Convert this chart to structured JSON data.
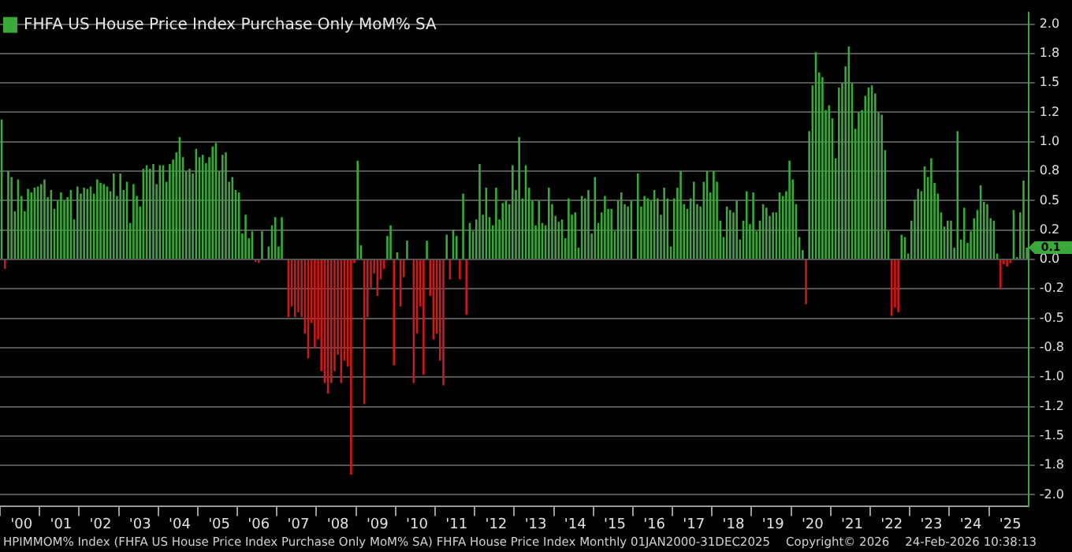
{
  "chart_data": {
    "type": "bar",
    "categories": [
      null,
      null,
      null,
      null,
      null,
      null,
      "'00",
      null,
      null,
      null,
      null,
      null,
      null,
      null,
      null,
      null,
      null,
      null,
      "'01",
      null,
      null,
      null,
      null,
      null,
      null,
      null,
      null,
      null,
      null,
      null,
      "'02",
      null,
      null,
      null,
      null,
      null,
      null,
      null,
      null,
      null,
      null,
      null,
      "'03",
      null,
      null,
      null,
      null,
      null,
      null,
      null,
      null,
      null,
      null,
      null,
      "'04",
      null,
      null,
      null,
      null,
      null,
      null,
      null,
      null,
      null,
      null,
      null,
      "'05",
      null,
      null,
      null,
      null,
      null,
      null,
      null,
      null,
      null,
      null,
      null,
      "'06",
      null,
      null,
      null,
      null,
      null,
      null,
      null,
      null,
      null,
      null,
      null,
      "'07",
      null,
      null,
      null,
      null,
      null,
      null,
      null,
      null,
      null,
      null,
      null,
      "'08",
      null,
      null,
      null,
      null,
      null,
      null,
      null,
      null,
      null,
      null,
      null,
      "'09",
      null,
      null,
      null,
      null,
      null,
      null,
      null,
      null,
      null,
      null,
      null,
      "'10",
      null,
      null,
      null,
      null,
      null,
      null,
      null,
      null,
      null,
      null,
      null,
      "'11",
      null,
      null,
      null,
      null,
      null,
      null,
      null,
      null,
      null,
      null,
      null,
      "'12",
      null,
      null,
      null,
      null,
      null,
      null,
      null,
      null,
      null,
      null,
      null,
      "'13",
      null,
      null,
      null,
      null,
      null,
      null,
      null,
      null,
      null,
      null,
      null,
      "'14",
      null,
      null,
      null,
      null,
      null,
      null,
      null,
      null,
      null,
      null,
      null,
      "'15",
      null,
      null,
      null,
      null,
      null,
      null,
      null,
      null,
      null,
      null,
      null,
      "'16",
      null,
      null,
      null,
      null,
      null,
      null,
      null,
      null,
      null,
      null,
      null,
      "'17",
      null,
      null,
      null,
      null,
      null,
      null,
      null,
      null,
      null,
      null,
      null,
      "'18",
      null,
      null,
      null,
      null,
      null,
      null,
      null,
      null,
      null,
      null,
      null,
      "'19",
      null,
      null,
      null,
      null,
      null,
      null,
      null,
      null,
      null,
      null,
      null,
      "'20",
      null,
      null,
      null,
      null,
      null,
      null,
      null,
      null,
      null,
      null,
      null,
      "'21",
      null,
      null,
      null,
      null,
      null,
      null,
      null,
      null,
      null,
      null,
      null,
      "'22",
      null,
      null,
      null,
      null,
      null,
      null,
      null,
      null,
      null,
      null,
      null,
      "'23",
      null,
      null,
      null,
      null,
      null,
      null,
      null,
      null,
      null,
      null,
      null,
      "'24",
      null,
      null,
      null,
      null,
      null,
      null,
      null,
      null,
      null,
      null,
      null,
      "'25",
      null,
      null,
      null,
      null,
      null
    ],
    "series": [
      {
        "name": "FHFA US House Price Index Purchase Only MoM% SA",
        "color": "#3aa83a",
        "values": [
          1.19,
          -0.08,
          0.75,
          0.7,
          0.41,
          0.68,
          0.54,
          0.41,
          0.6,
          0.57,
          0.61,
          0.62,
          0.64,
          0.68,
          0.53,
          0.59,
          0.43,
          0.5,
          0.57,
          0.5,
          0.53,
          0.59,
          0.34,
          0.62,
          0.56,
          0.61,
          0.6,
          0.62,
          0.56,
          0.68,
          0.65,
          0.64,
          0.62,
          0.58,
          0.73,
          0.54,
          0.73,
          0.59,
          0.66,
          0.31,
          0.64,
          0.54,
          0.45,
          0.77,
          0.8,
          0.77,
          0.81,
          0.64,
          0.8,
          0.8,
          0.66,
          0.81,
          0.85,
          0.91,
          1.04,
          0.87,
          0.75,
          0.77,
          0.73,
          0.94,
          0.87,
          0.89,
          0.82,
          0.87,
          0.96,
          0.99,
          0.75,
          0.89,
          0.91,
          0.66,
          0.7,
          0.59,
          0.57,
          0.22,
          0.38,
          0.18,
          0.24,
          -0.02,
          -0.03,
          0.24,
          null,
          0.11,
          0.29,
          0.36,
          0.11,
          0.36,
          null,
          -0.49,
          -0.4,
          -0.49,
          -0.45,
          -0.49,
          -0.63,
          -0.84,
          -0.54,
          -0.75,
          -0.68,
          -0.95,
          -1.05,
          -1.14,
          -1.05,
          -0.95,
          -0.81,
          -1.05,
          -0.86,
          -0.91,
          -1.83,
          -0.03,
          0.84,
          0.12,
          -1.23,
          -0.49,
          -0.24,
          -0.12,
          -0.31,
          -0.17,
          -0.08,
          0.2,
          0.29,
          -0.9,
          0.06,
          -0.4,
          -0.15,
          0.16,
          null,
          -1.05,
          -0.63,
          -0.4,
          -0.98,
          0.16,
          -0.31,
          -0.68,
          -0.63,
          -0.86,
          -1.07,
          0.21,
          -0.17,
          0.25,
          0.2,
          -0.17,
          0.56,
          -0.47,
          0.31,
          0.24,
          0.34,
          0.81,
          0.38,
          0.61,
          0.36,
          0.29,
          0.61,
          0.34,
          0.48,
          0.5,
          0.47,
          0.8,
          0.59,
          1.04,
          0.52,
          0.8,
          0.61,
          0.5,
          0.29,
          0.5,
          0.31,
          0.29,
          0.61,
          0.47,
          0.37,
          0.32,
          0.34,
          0.18,
          0.52,
          0.38,
          0.4,
          0.1,
          0.54,
          0.52,
          0.59,
          0.22,
          0.7,
          0.31,
          0.4,
          0.54,
          0.43,
          0.43,
          0.24,
          0.5,
          0.57,
          0.47,
          0.45,
          0.5,
          null,
          0.73,
          0.45,
          0.54,
          0.52,
          0.5,
          0.59,
          0.52,
          0.38,
          0.61,
          0.52,
          0.11,
          0.52,
          0.61,
          0.75,
          0.47,
          0.43,
          0.52,
          0.66,
          0.47,
          0.45,
          0.66,
          0.75,
          0.57,
          0.75,
          0.66,
          0.33,
          0.19,
          0.45,
          0.42,
          0.4,
          0.5,
          0.17,
          0.33,
          0.58,
          0.3,
          0.57,
          0.24,
          0.33,
          0.47,
          0.44,
          0.37,
          0.4,
          0.4,
          0.57,
          0.54,
          0.58,
          0.84,
          0.68,
          0.47,
          0.19,
          0.08,
          -0.38,
          1.09,
          1.48,
          1.76,
          1.59,
          1.55,
          1.27,
          1.31,
          1.2,
          0.86,
          1.46,
          1.5,
          1.64,
          1.81,
          1.5,
          1.11,
          1.25,
          1.27,
          1.39,
          1.46,
          1.48,
          1.41,
          1.25,
          1.23,
          0.93,
          0.24,
          -0.48,
          -0.41,
          -0.45,
          0.21,
          0.19,
          0.05,
          0.33,
          0.51,
          0.6,
          0.58,
          0.79,
          0.7,
          0.86,
          0.65,
          0.56,
          0.4,
          0.28,
          0.33,
          0.33,
          0.1,
          1.09,
          0.17,
          0.44,
          0.14,
          0.24,
          0.35,
          0.42,
          0.63,
          0.49,
          0.47,
          0.35,
          0.33,
          0.05,
          -0.25,
          -0.04,
          -0.06,
          -0.03,
          0.42,
          0.02,
          0.4,
          0.67,
          0.1
        ],
        "colors": [
          "#3aa83a",
          "#d01818",
          "#3aa83a",
          "#3aa83a",
          "#3aa83a",
          "#3aa83a",
          "#3aa83a",
          "#3aa83a",
          "#3aa83a",
          "#3aa83a",
          "#3aa83a",
          "#3aa83a",
          "#3aa83a",
          "#3aa83a",
          "#3aa83a",
          "#3aa83a",
          "#3aa83a",
          "#3aa83a",
          "#3aa83a",
          "#3aa83a",
          "#3aa83a",
          "#3aa83a",
          "#3aa83a",
          "#3aa83a",
          "#3aa83a",
          "#3aa83a",
          "#3aa83a",
          "#3aa83a",
          "#3aa83a",
          "#3aa83a",
          "#3aa83a",
          "#3aa83a",
          "#3aa83a",
          "#3aa83a",
          "#3aa83a",
          "#3aa83a",
          "#3aa83a",
          "#3aa83a",
          "#3aa83a",
          "#3aa83a",
          "#3aa83a",
          "#3aa83a",
          "#3aa83a",
          "#3aa83a",
          "#3aa83a",
          "#3aa83a",
          "#3aa83a",
          "#3aa83a",
          "#3aa83a",
          "#3aa83a",
          "#3aa83a",
          "#3aa83a",
          "#3aa83a",
          "#3aa83a",
          "#3aa83a",
          "#3aa83a",
          "#3aa83a",
          "#3aa83a",
          "#3aa83a",
          "#3aa83a",
          "#3aa83a",
          "#3aa83a",
          "#3aa83a",
          "#3aa83a",
          "#3aa83a",
          "#3aa83a",
          "#3aa83a",
          "#3aa83a",
          "#3aa83a",
          "#3aa83a",
          "#3aa83a",
          "#3aa83a",
          "#3aa83a",
          "#3aa83a",
          "#3aa83a",
          "#3aa83a",
          "#3aa83a",
          "#d01818",
          "#d01818",
          "#3aa83a",
          "#3aa83a",
          "#3aa83a",
          "#3aa83a",
          "#3aa83a",
          "#3aa83a",
          "#3aa83a",
          "#3aa83a",
          "#d01818",
          "#d01818",
          "#d01818",
          "#d01818",
          "#d01818",
          "#d01818",
          "#d01818",
          "#d01818",
          "#d01818",
          "#d01818",
          "#d01818",
          "#d01818",
          "#d01818",
          "#d01818",
          "#d01818",
          "#d01818",
          "#d01818",
          "#d01818",
          "#d01818",
          "#d01818",
          "#d01818",
          "#3aa83a",
          "#3aa83a",
          "#d01818",
          "#d01818",
          "#d01818",
          "#d01818",
          "#d01818",
          "#d01818",
          "#d01818",
          "#3aa83a",
          "#3aa83a",
          "#d01818",
          "#3aa83a",
          "#d01818",
          "#d01818",
          "#3aa83a",
          "#3aa83a",
          "#d01818",
          "#d01818",
          "#d01818",
          "#d01818",
          "#3aa83a",
          "#d01818",
          "#d01818",
          "#d01818",
          "#d01818",
          "#d01818",
          "#3aa83a",
          "#d01818",
          "#3aa83a",
          "#3aa83a",
          "#d01818",
          "#3aa83a",
          "#d01818",
          "#3aa83a",
          "#3aa83a",
          "#3aa83a",
          "#3aa83a",
          "#3aa83a",
          "#3aa83a",
          "#3aa83a",
          "#3aa83a",
          "#3aa83a",
          "#3aa83a",
          "#3aa83a",
          "#3aa83a",
          "#3aa83a",
          "#3aa83a",
          "#3aa83a",
          "#3aa83a",
          "#3aa83a",
          "#3aa83a",
          "#3aa83a",
          "#3aa83a",
          "#3aa83a",
          "#3aa83a",
          "#3aa83a",
          "#3aa83a",
          "#3aa83a",
          "#3aa83a",
          "#3aa83a",
          "#3aa83a",
          "#3aa83a",
          "#3aa83a",
          "#3aa83a",
          "#3aa83a",
          "#3aa83a",
          "#3aa83a",
          "#3aa83a",
          "#3aa83a",
          "#3aa83a",
          "#3aa83a",
          "#3aa83a",
          "#3aa83a",
          "#3aa83a",
          "#3aa83a",
          "#3aa83a",
          "#3aa83a",
          "#3aa83a",
          "#3aa83a",
          "#3aa83a",
          "#3aa83a",
          "#3aa83a",
          "#3aa83a",
          "#3aa83a",
          "#3aa83a",
          "#3aa83a",
          "#3aa83a",
          "#3aa83a",
          "#3aa83a",
          "#3aa83a",
          "#3aa83a",
          "#3aa83a",
          "#3aa83a",
          "#3aa83a",
          "#3aa83a",
          "#3aa83a",
          "#3aa83a",
          "#3aa83a",
          "#3aa83a",
          "#3aa83a",
          "#3aa83a",
          "#3aa83a",
          "#3aa83a",
          "#3aa83a",
          "#3aa83a",
          "#3aa83a",
          "#3aa83a",
          "#3aa83a",
          "#3aa83a",
          "#3aa83a",
          "#3aa83a",
          "#3aa83a",
          "#3aa83a",
          "#3aa83a",
          "#3aa83a",
          "#3aa83a",
          "#3aa83a",
          "#3aa83a",
          "#3aa83a",
          "#3aa83a",
          "#3aa83a",
          "#3aa83a",
          "#3aa83a",
          "#3aa83a",
          "#3aa83a",
          "#3aa83a",
          "#3aa83a",
          "#3aa83a",
          "#3aa83a",
          "#3aa83a",
          "#3aa83a",
          "#3aa83a",
          "#3aa83a",
          "#3aa83a",
          "#3aa83a",
          "#d01818",
          "#3aa83a",
          "#3aa83a",
          "#3aa83a",
          "#3aa83a",
          "#3aa83a",
          "#3aa83a",
          "#3aa83a",
          "#3aa83a",
          "#3aa83a",
          "#3aa83a",
          "#3aa83a",
          "#3aa83a",
          "#3aa83a",
          "#3aa83a",
          "#3aa83a",
          "#3aa83a",
          "#3aa83a",
          "#3aa83a",
          "#3aa83a",
          "#3aa83a",
          "#3aa83a",
          "#3aa83a",
          "#3aa83a",
          "#3aa83a",
          "#3aa83a",
          "#d01818",
          "#d01818",
          "#d01818",
          "#3aa83a",
          "#3aa83a",
          "#3aa83a",
          "#3aa83a",
          "#3aa83a",
          "#3aa83a",
          "#3aa83a",
          "#3aa83a",
          "#3aa83a",
          "#3aa83a",
          "#3aa83a",
          "#3aa83a",
          "#3aa83a",
          "#3aa83a",
          "#3aa83a",
          "#3aa83a",
          "#3aa83a",
          "#3aa83a",
          "#3aa83a",
          "#3aa83a",
          "#3aa83a",
          "#3aa83a",
          "#3aa83a",
          "#3aa83a",
          "#3aa83a",
          "#3aa83a",
          "#3aa83a",
          "#3aa83a",
          "#3aa83a",
          "#3aa83a",
          "#d01818",
          "#d01818",
          "#d01818",
          "#d01818",
          "#3aa83a",
          "#3aa83a",
          "#3aa83a",
          "#3aa83a",
          "#3aa83a"
        ]
      }
    ],
    "ylim": [
      -2.1,
      2.1
    ],
    "yticks": [
      {
        "value": 2,
        "label": "2.0"
      },
      {
        "value": 1.75,
        "label": "1.8"
      },
      {
        "value": 1.5,
        "label": "1.5"
      },
      {
        "value": 1.25,
        "label": "1.2"
      },
      {
        "value": 1,
        "label": "1.0"
      },
      {
        "value": 0.75,
        "label": "0.8"
      },
      {
        "value": 0.5,
        "label": "0.5"
      },
      {
        "value": 0.25,
        "label": "0.2"
      },
      {
        "value": 0,
        "label": "0.0"
      },
      {
        "value": -0.25,
        "label": "-0.2"
      },
      {
        "value": -0.5,
        "label": "-0.5"
      },
      {
        "value": -0.75,
        "label": "-0.8"
      },
      {
        "value": -1,
        "label": "-1.0"
      },
      {
        "value": -1.25,
        "label": "-1.2"
      },
      {
        "value": -1.5,
        "label": "-1.5"
      },
      {
        "value": -1.75,
        "label": "-1.8"
      },
      {
        "value": -2,
        "label": "-2.0"
      }
    ],
    "grid": "y",
    "legend": "top left",
    "annotations": [
      "0.1",
      "HPIMMOM% Index (FHFA US House Price Index Purchase Only MoM% SA) FHFA House Price Index Monthly 01JAN2000-31DEC2025",
      "Copyright© 2026",
      "24-Feb-2026 10:38:13"
    ]
  }
}
